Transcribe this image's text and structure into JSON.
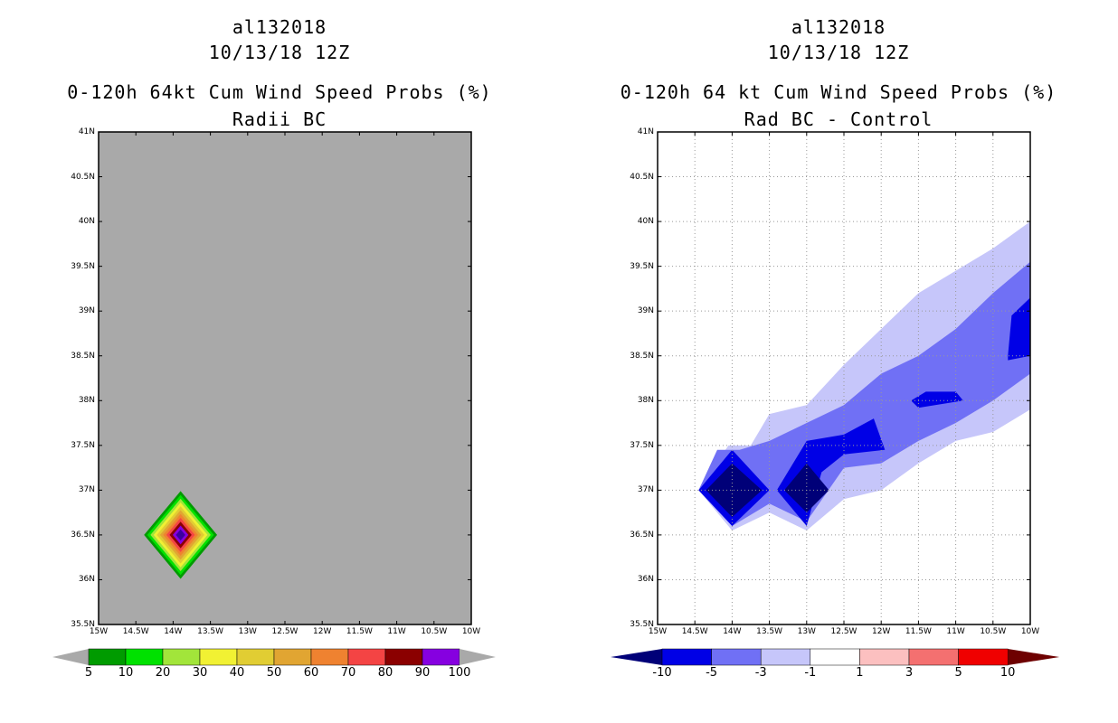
{
  "left": {
    "title_storm": "al132018",
    "title_date": "10/13/18 12Z",
    "title_product": "0-120h 64kt Cum Wind Speed Probs (%)",
    "title_sub": "Radii BC",
    "background_color": "#a9a9a9",
    "colorbar": {
      "colors": [
        "#009b00",
        "#00e100",
        "#a2e53a",
        "#f1f133",
        "#e1cd33",
        "#e1a532",
        "#ef8230",
        "#f44444",
        "#8b0000",
        "#8600e0"
      ],
      "labels": [
        "5",
        "10",
        "20",
        "30",
        "40",
        "50",
        "60",
        "70",
        "80",
        "90",
        "100"
      ],
      "end_color": "#a9a9a9"
    },
    "blob_center": {
      "lon": -13.9,
      "lat": 36.5
    },
    "blob_levels": [
      {
        "value": 5,
        "color": "#009b00"
      },
      {
        "value": 10,
        "color": "#00e100"
      },
      {
        "value": 20,
        "color": "#a2e53a"
      },
      {
        "value": 30,
        "color": "#f1f133"
      },
      {
        "value": 40,
        "color": "#e1cd33"
      },
      {
        "value": 50,
        "color": "#e1a532"
      },
      {
        "value": 60,
        "color": "#ef8230"
      },
      {
        "value": 70,
        "color": "#f44444"
      },
      {
        "value": 80,
        "color": "#8b0000"
      },
      {
        "value": 90,
        "color": "#8600e0"
      },
      {
        "value": 100,
        "color": "#3a00a0"
      }
    ]
  },
  "right": {
    "title_storm": "al132018",
    "title_date": "10/13/18 12Z",
    "title_product": "0-120h 64 kt Cum Wind Speed Probs (%)",
    "title_sub": "Rad BC - Control",
    "colorbar": {
      "colors": [
        "#0000e6",
        "#7070f5",
        "#c6c6fa",
        "#ffffff",
        "#fcc0c0",
        "#f47070",
        "#f00000"
      ],
      "labels": [
        "-10",
        "-5",
        "-3",
        "-1",
        "1",
        "3",
        "5",
        "10"
      ],
      "start_color": "#000078",
      "end_color": "#6e0000"
    },
    "contours": [
      {
        "level": "-1 to -3",
        "color": "#c6c6fa",
        "points": [
          [
            -14.05,
            37.5
          ],
          [
            -13.75,
            37.5
          ],
          [
            -13.5,
            37.85
          ],
          [
            -13.0,
            37.95
          ],
          [
            -12.5,
            38.4
          ],
          [
            -12.0,
            38.8
          ],
          [
            -11.5,
            39.2
          ],
          [
            -11.0,
            39.45
          ],
          [
            -10.5,
            39.7
          ],
          [
            -10.0,
            40.0
          ],
          [
            -10.0,
            37.9
          ],
          [
            -10.5,
            37.65
          ],
          [
            -11.0,
            37.55
          ],
          [
            -11.5,
            37.3
          ],
          [
            -12.0,
            37.0
          ],
          [
            -12.5,
            36.9
          ],
          [
            -13.0,
            36.55
          ],
          [
            -13.5,
            36.75
          ],
          [
            -14.0,
            36.55
          ],
          [
            -14.45,
            37.0
          ]
        ]
      },
      {
        "level": "-3 to -5",
        "color": "#7070f5",
        "points": [
          [
            -14.2,
            37.45
          ],
          [
            -13.9,
            37.45
          ],
          [
            -13.5,
            37.55
          ],
          [
            -13.0,
            37.75
          ],
          [
            -12.5,
            37.95
          ],
          [
            -12.0,
            38.3
          ],
          [
            -11.5,
            38.5
          ],
          [
            -11.0,
            38.8
          ],
          [
            -10.5,
            39.2
          ],
          [
            -10.0,
            39.55
          ],
          [
            -10.0,
            38.3
          ],
          [
            -10.5,
            38.0
          ],
          [
            -11.0,
            37.75
          ],
          [
            -11.5,
            37.55
          ],
          [
            -12.0,
            37.3
          ],
          [
            -12.5,
            37.25
          ],
          [
            -13.0,
            36.65
          ],
          [
            -13.5,
            36.85
          ],
          [
            -14.0,
            36.6
          ],
          [
            -14.45,
            37.0
          ]
        ]
      },
      {
        "level": "-5 to -10 A",
        "color": "#0000e6",
        "points": [
          [
            -14.0,
            37.45
          ],
          [
            -13.5,
            37.0
          ],
          [
            -14.0,
            36.6
          ],
          [
            -14.45,
            37.0
          ]
        ]
      },
      {
        "level": "-5 to -10 B",
        "color": "#0000e6",
        "points": [
          [
            -13.0,
            37.55
          ],
          [
            -12.5,
            37.62
          ],
          [
            -12.1,
            37.8
          ],
          [
            -11.95,
            37.45
          ],
          [
            -12.5,
            37.4
          ],
          [
            -12.8,
            37.2
          ],
          [
            -13.0,
            36.6
          ],
          [
            -13.4,
            37.0
          ]
        ]
      },
      {
        "level": "-5 to -10 C",
        "color": "#0000e6",
        "points": [
          [
            -11.6,
            38.0
          ],
          [
            -11.4,
            38.1
          ],
          [
            -11.0,
            38.1
          ],
          [
            -10.9,
            38.0
          ],
          [
            -11.5,
            37.92
          ]
        ]
      },
      {
        "level": "-5 to -10 D",
        "color": "#0000e6",
        "points": [
          [
            -10.3,
            38.5
          ],
          [
            -10.25,
            38.95
          ],
          [
            -10.0,
            39.15
          ],
          [
            -10.0,
            38.5
          ],
          [
            -10.3,
            38.45
          ]
        ]
      },
      {
        "level": "< -10 A",
        "color": "#000078",
        "points": [
          [
            -14.0,
            37.3
          ],
          [
            -13.6,
            37.0
          ],
          [
            -14.0,
            36.7
          ],
          [
            -14.35,
            37.0
          ]
        ]
      },
      {
        "level": "< -10 B",
        "color": "#000078",
        "points": [
          [
            -13.0,
            37.3
          ],
          [
            -12.7,
            37.0
          ],
          [
            -13.0,
            36.75
          ],
          [
            -13.3,
            37.0
          ]
        ]
      }
    ]
  },
  "axes": {
    "lat_ticks": [
      "41N",
      "40.5N",
      "40N",
      "39.5N",
      "39N",
      "38.5N",
      "38N",
      "37.5N",
      "37N",
      "36.5N",
      "36N",
      "35.5N"
    ],
    "lat_values": [
      41,
      40.5,
      40,
      39.5,
      39,
      38.5,
      38,
      37.5,
      37,
      36.5,
      36,
      35.5
    ],
    "lon_ticks": [
      "15W",
      "14.5W",
      "14W",
      "13.5W",
      "13W",
      "12.5W",
      "12W",
      "11.5W",
      "11W",
      "10.5W",
      "10W"
    ],
    "lon_values": [
      -15,
      -14.5,
      -14,
      -13.5,
      -13,
      -12.5,
      -12,
      -11.5,
      -11,
      -10.5,
      -10
    ],
    "lon_range": [
      -15,
      -10
    ],
    "lat_range": [
      35.5,
      41
    ]
  }
}
